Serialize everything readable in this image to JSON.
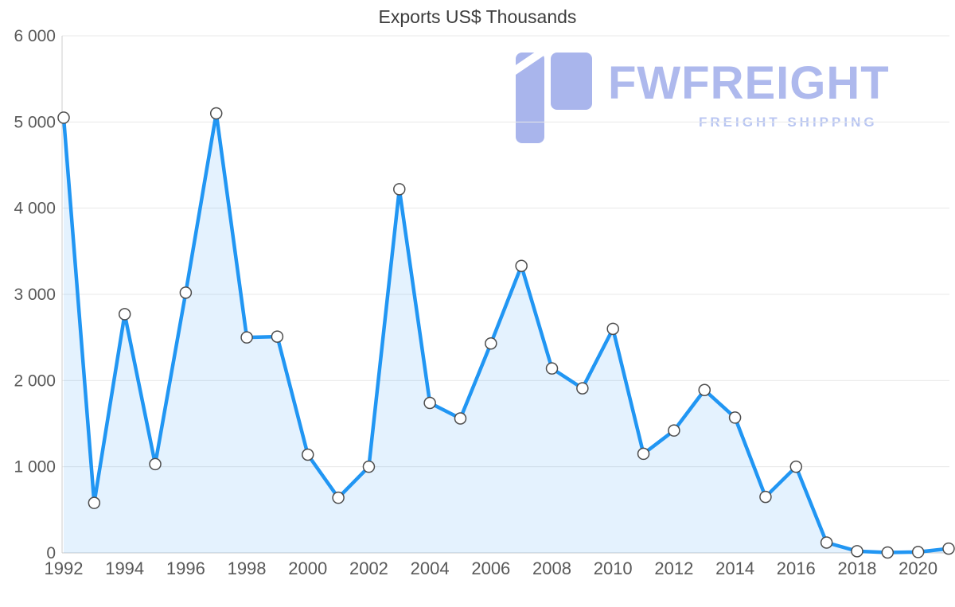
{
  "title": "Exports US$ Thousands",
  "watermark": {
    "brand": "FWFREIGHT",
    "tagline": "FREIGHT SHIPPING",
    "brand_color": "#aeb9ed",
    "tagline_color": "#b9c6f2",
    "logo_color": "#a9b5ec"
  },
  "chart_data": {
    "type": "area",
    "title": "Exports US$ Thousands",
    "categories": [
      1992,
      1993,
      1994,
      1995,
      1996,
      1997,
      1998,
      1999,
      2000,
      2001,
      2002,
      2003,
      2004,
      2005,
      2006,
      2007,
      2008,
      2009,
      2010,
      2011,
      2012,
      2013,
      2014,
      2015,
      2016,
      2017,
      2018,
      2019,
      2020,
      2021
    ],
    "values": [
      5050,
      580,
      2770,
      1030,
      3020,
      5100,
      2500,
      2510,
      1140,
      640,
      1000,
      4220,
      1740,
      1560,
      2430,
      3330,
      2140,
      1910,
      2600,
      1150,
      1420,
      1890,
      1570,
      650,
      1000,
      120,
      20,
      5,
      10,
      50
    ],
    "x_tick_labels": [
      "1992",
      "1994",
      "1996",
      "1998",
      "2000",
      "2002",
      "2004",
      "2006",
      "2008",
      "2010",
      "2012",
      "2014",
      "2016",
      "2018",
      "2020"
    ],
    "y_ticks": [
      0,
      1000,
      2000,
      3000,
      4000,
      5000,
      6000
    ],
    "y_tick_labels": [
      "0",
      "1 000",
      "2 000",
      "3 000",
      "4 000",
      "5 000",
      "6 000"
    ],
    "ylim": [
      0,
      6000
    ],
    "xlabel": "",
    "ylabel": "",
    "grid": "horizontal",
    "legend": "none",
    "line_color": "#2196f3",
    "area_fill": "rgba(33,150,243,0.12)",
    "marker": {
      "fill": "#ffffff",
      "stroke": "#4d4d4d",
      "radius": 7
    },
    "axis_color": "#cccccc",
    "grid_color": "#e8e8e8",
    "label_color": "#595959",
    "title_color": "#3d3d3d"
  }
}
